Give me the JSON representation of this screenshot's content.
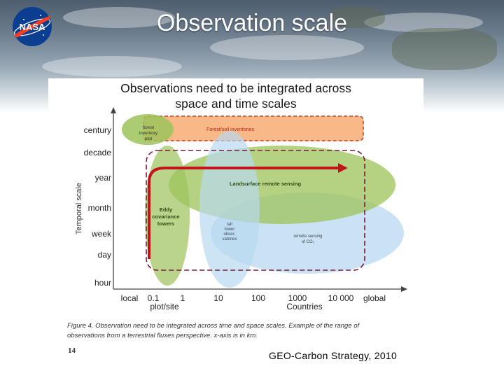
{
  "slide": {
    "title": "Observation scale",
    "page_number": "14",
    "source": "GEO-Carbon Strategy, 2010"
  },
  "logo": {
    "text": "NASA",
    "colors": {
      "blue": "#0b3d91",
      "red": "#fc3d21"
    }
  },
  "figure": {
    "title_line1": "Observations need to be integrated across",
    "title_line2": "space and time scales",
    "caption_line1": "Figure 4. Observation need to be integrated across time and space scales. Example of the range of",
    "caption_line2": "observations from a terrestrial fluxes perspective. x-axis is in km.",
    "y_axis_label": "Temporal scale",
    "y_ticks": [
      "century",
      "decade",
      "year",
      "month",
      "week",
      "day",
      "hour"
    ],
    "x_ticks": [
      "local",
      "0.1",
      "1",
      "10",
      "100",
      "1000",
      "10 000",
      "global"
    ],
    "x_sublabels": [
      "plot/site",
      "Countries"
    ],
    "regions": {
      "forest_plot": [
        "forest",
        "inventory",
        "plot"
      ],
      "forest_soil": "Forest/soil inventories",
      "eddy": [
        "Eddy",
        "covariance",
        "towers"
      ],
      "landsurface": "Landsurface remote sensing",
      "tall_tower": [
        "tall",
        "tower",
        "obser-",
        "vatories"
      ],
      "remote_co2": [
        "remote sensing",
        "of CO₂"
      ]
    },
    "colors": {
      "green_fill": "#9cc35a",
      "blue_fill": "#b8d8f0",
      "orange_fill": "#f7b07a",
      "red_dash": "#d03a1e",
      "maroon_dash": "#7a1a3a",
      "arrow": "#c0151b"
    }
  }
}
